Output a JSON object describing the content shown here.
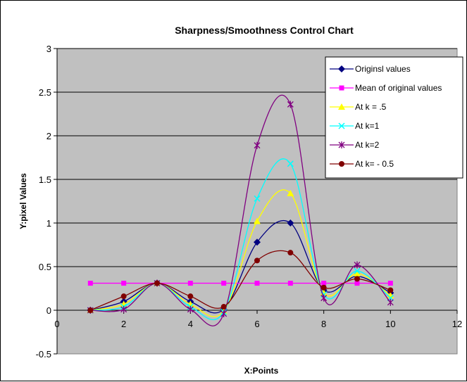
{
  "chart_data": {
    "type": "line",
    "title": "Sharpness/Smoothness Control Chart",
    "xlabel": "X:Points",
    "ylabel": "Y:pixel Values",
    "xlim": [
      0,
      12
    ],
    "ylim": [
      -0.5,
      3
    ],
    "x_ticks": [
      "0",
      "2",
      "4",
      "6",
      "8",
      "10",
      "12"
    ],
    "y_ticks": [
      "-0.5",
      "0",
      "0.5",
      "1",
      "1.5",
      "2",
      "2.5",
      "3"
    ],
    "x_tick_values": [
      0,
      2,
      4,
      6,
      8,
      10,
      12
    ],
    "y_tick_values": [
      -0.5,
      0,
      0.5,
      1,
      1.5,
      2,
      2.5,
      3
    ],
    "grid": "horizontal",
    "plot_background": "#c0c0c0",
    "legend_position": "right",
    "x": [
      1,
      2,
      3,
      4,
      5,
      6,
      7,
      8,
      9,
      10
    ],
    "series": [
      {
        "name": "Originsl values",
        "color": "#000080",
        "marker": "diamond",
        "values": [
          0,
          0.1,
          0.31,
          0.1,
          0.01,
          0.78,
          1.0,
          0.23,
          0.39,
          0.2
        ]
      },
      {
        "name": "Mean  of original values",
        "color": "#ff00ff",
        "marker": "square",
        "values": [
          0.31,
          0.31,
          0.31,
          0.31,
          0.31,
          0.31,
          0.31,
          0.31,
          0.31,
          0.31
        ]
      },
      {
        "name": "At k = .5",
        "color": "#ffff00",
        "marker": "triangle",
        "values": [
          0,
          0.07,
          0.31,
          0.07,
          -0.01,
          1.02,
          1.34,
          0.2,
          0.42,
          0.17
        ]
      },
      {
        "name": "At k=1",
        "color": "#00ffff",
        "marker": "x",
        "values": [
          0,
          0.04,
          0.31,
          0.04,
          -0.02,
          1.28,
          1.68,
          0.18,
          0.45,
          0.14
        ]
      },
      {
        "name": "At k=2",
        "color": "#800080",
        "marker": "star",
        "values": [
          0,
          0.01,
          0.31,
          0.01,
          -0.04,
          1.89,
          2.36,
          0.14,
          0.52,
          0.09
        ]
      },
      {
        "name": "At k= - 0.5",
        "color": "#800000",
        "marker": "circle",
        "values": [
          0,
          0.16,
          0.31,
          0.16,
          0.04,
          0.57,
          0.66,
          0.26,
          0.36,
          0.23
        ]
      }
    ]
  }
}
